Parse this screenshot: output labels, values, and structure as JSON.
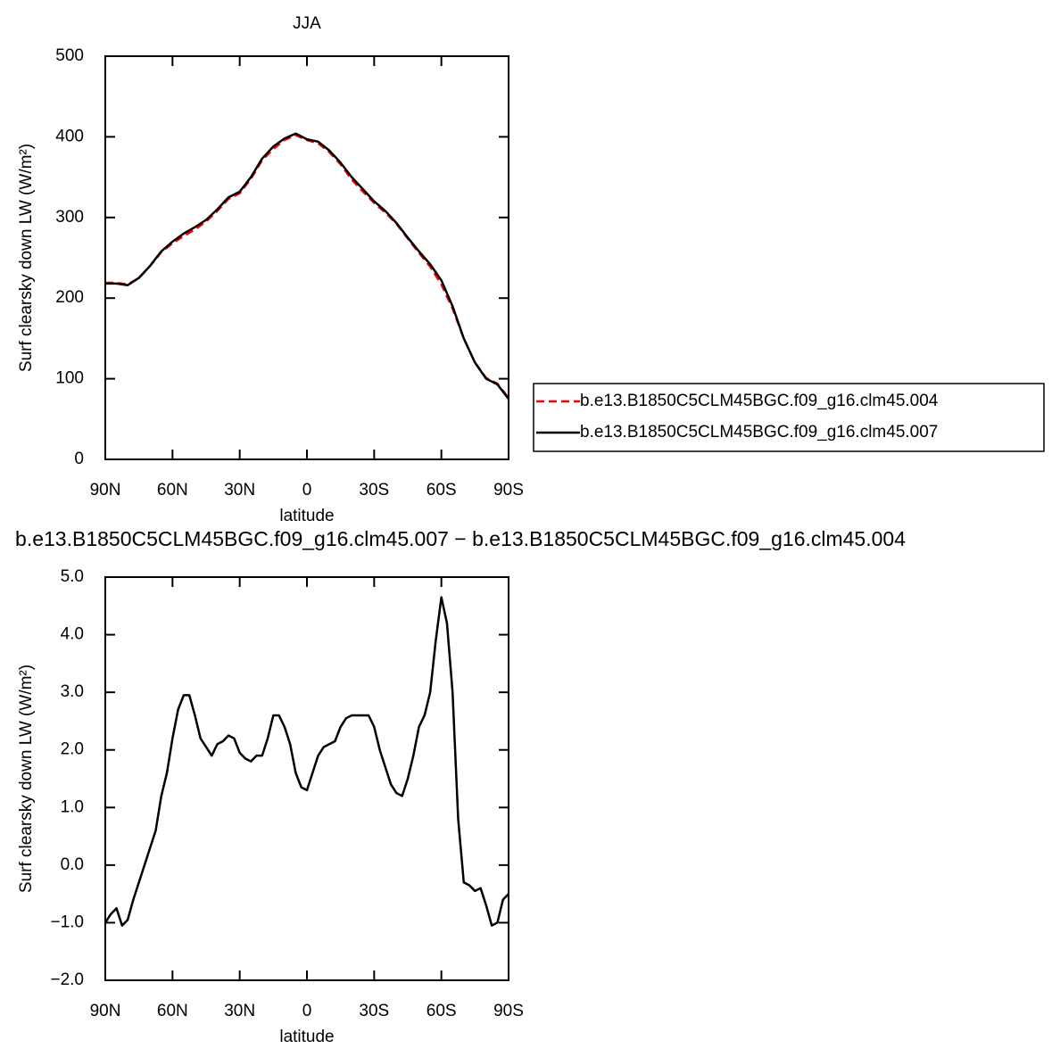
{
  "chart_data": [
    {
      "type": "line",
      "title": "JJA",
      "xlabel": "latitude",
      "ylabel": "Surf clearsky down LW (W/m²)",
      "x": [
        90,
        85,
        80,
        75,
        70,
        65,
        60,
        55,
        50,
        45,
        40,
        35,
        30,
        25,
        20,
        15,
        10,
        5,
        0,
        -5,
        -10,
        -15,
        -20,
        -25,
        -30,
        -35,
        -40,
        -45,
        -50,
        -55,
        -60,
        -65,
        -70,
        -75,
        -80,
        -85,
        -90
      ],
      "series": [
        {
          "name": "b.e13.B1850C5CLM45BGC.f09_g16.clm45.004",
          "color": "#ff0000",
          "line_style": "dashed",
          "values": [
            219,
            219,
            217,
            225,
            240,
            257,
            268,
            277,
            285,
            295,
            308,
            323,
            330,
            348,
            371,
            385,
            396,
            402,
            396,
            392,
            381,
            366,
            347,
            332,
            318,
            306,
            292,
            274,
            256,
            239,
            217,
            187,
            150,
            120,
            101,
            94,
            76
          ]
        },
        {
          "name": "b.e13.B1850C5CLM45BGC.f09_g16.clm45.007",
          "color": "#000000",
          "line_style": "solid",
          "values": [
            218,
            218,
            216,
            225,
            240,
            258,
            270,
            280,
            288,
            297,
            310,
            325,
            332,
            350,
            373,
            388,
            398,
            404,
            397,
            394,
            383,
            368,
            350,
            335,
            320,
            308,
            293,
            275,
            258,
            242,
            222,
            190,
            150,
            120,
            100,
            93,
            75
          ]
        }
      ],
      "xlim": [
        90,
        -90
      ],
      "xticks": [
        {
          "value": 90,
          "label": "90N"
        },
        {
          "value": 60,
          "label": "60N"
        },
        {
          "value": 30,
          "label": "30N"
        },
        0,
        {
          "value": -30,
          "label": "30S"
        },
        {
          "value": -60,
          "label": "60S"
        },
        {
          "value": -90,
          "label": "90S"
        }
      ],
      "ylim": [
        0,
        500
      ],
      "yticks": [
        0,
        100,
        200,
        300,
        400,
        500
      ],
      "legend": "right"
    },
    {
      "type": "line",
      "title": "b.e13.B1850C5CLM45BGC.f09_g16.clm45.007 − b.e13.B1850C5CLM45BGC.f09_g16.clm45.004",
      "xlabel": "latitude",
      "ylabel": "Surf clearsky down LW (W/m²)",
      "x": [
        90,
        87.5,
        85,
        82.5,
        80,
        77.5,
        75,
        72.5,
        70,
        67.5,
        65,
        62.5,
        60,
        57.5,
        55,
        52.5,
        50,
        47.5,
        45,
        42.5,
        40,
        37.5,
        35,
        32.5,
        30,
        27.5,
        25,
        22.5,
        20,
        17.5,
        15,
        12.5,
        10,
        7.5,
        5,
        2.5,
        0,
        -2.5,
        -5,
        -7.5,
        -10,
        -12.5,
        -15,
        -17.5,
        -20,
        -22.5,
        -25,
        -27.5,
        -30,
        -32.5,
        -35,
        -37.5,
        -40,
        -42.5,
        -45,
        -47.5,
        -50,
        -52.5,
        -55,
        -57.5,
        -60,
        -62.5,
        -65,
        -67.5,
        -70,
        -72.5,
        -75,
        -77.5,
        -80,
        -82.5,
        -85,
        -87.5,
        -90
      ],
      "series": [
        {
          "color": "#000000",
          "line_style": "solid",
          "values": [
            -1.0,
            -0.85,
            -0.75,
            -1.05,
            -0.95,
            -0.6,
            -0.3,
            0.0,
            0.3,
            0.6,
            1.2,
            1.6,
            2.2,
            2.7,
            2.95,
            2.95,
            2.6,
            2.2,
            2.05,
            1.9,
            2.1,
            2.15,
            2.25,
            2.2,
            1.95,
            1.85,
            1.8,
            1.9,
            1.9,
            2.2,
            2.6,
            2.6,
            2.4,
            2.1,
            1.6,
            1.35,
            1.3,
            1.6,
            1.9,
            2.05,
            2.1,
            2.15,
            2.4,
            2.55,
            2.6,
            2.6,
            2.6,
            2.6,
            2.4,
            2.0,
            1.7,
            1.4,
            1.25,
            1.2,
            1.5,
            1.9,
            2.4,
            2.6,
            3.0,
            3.9,
            4.65,
            4.2,
            3.0,
            0.8,
            -0.3,
            -0.35,
            -0.45,
            -0.4,
            -0.7,
            -1.05,
            -1.0,
            -0.6,
            -0.5
          ]
        }
      ],
      "xlim": [
        90,
        -90
      ],
      "xticks": [
        {
          "value": 90,
          "label": "90N"
        },
        {
          "value": 60,
          "label": "60N"
        },
        {
          "value": 30,
          "label": "30N"
        },
        0,
        {
          "value": -30,
          "label": "30S"
        },
        {
          "value": -60,
          "label": "60S"
        },
        {
          "value": -90,
          "label": "90S"
        }
      ],
      "ylim": [
        -2,
        5
      ],
      "yticks": [
        {
          "value": -2,
          "label": "−2.0"
        },
        {
          "value": -1,
          "label": "−1.0"
        },
        {
          "value": 0,
          "label": "0.0"
        },
        {
          "value": 1,
          "label": "1.0"
        },
        {
          "value": 2,
          "label": "2.0"
        },
        {
          "value": 3,
          "label": "3.0"
        },
        {
          "value": 4,
          "label": "4.0"
        },
        {
          "value": 5,
          "label": "5.0"
        }
      ]
    }
  ]
}
